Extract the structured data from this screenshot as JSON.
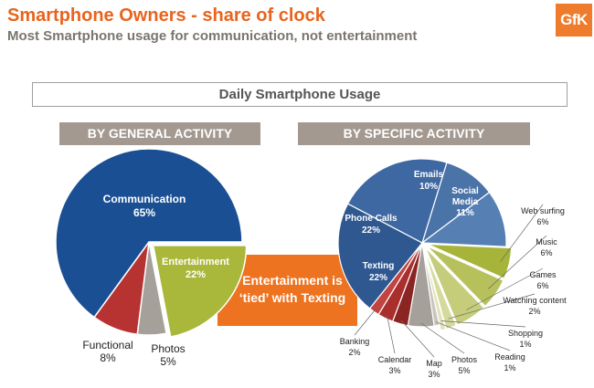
{
  "title": "Smartphone Owners - share of clock",
  "subtitle": "Most Smartphone usage for communication, not entertainment",
  "logo_text": "GfK",
  "usage_box_label": "Daily Smartphone Usage",
  "section_general": "BY GENERAL ACTIVITY",
  "section_specific": "BY SPECIFIC ACTIVITY",
  "callout_text": "Entertainment is ‘tied’ with Texting",
  "colors": {
    "brand_orange": "#e8641e",
    "communication": "#1a4f93",
    "entertainment": "#a9b73a",
    "functional": "#b73332",
    "photos": "#a5a09a"
  },
  "chart_data": [
    {
      "type": "pie",
      "title": "BY GENERAL ACTIVITY",
      "slices": [
        {
          "label": "Communication",
          "value": 65,
          "value_label": "65%",
          "color": "#1a4f93"
        },
        {
          "label": "Entertainment",
          "value": 22,
          "value_label": "22%",
          "color": "#a9b73a"
        },
        {
          "label": "Photos",
          "value": 5,
          "value_label": "5%",
          "color": "#a5a09a"
        },
        {
          "label": "Functional",
          "value": 8,
          "value_label": "8%",
          "color": "#b73332"
        }
      ]
    },
    {
      "type": "pie",
      "title": "BY SPECIFIC ACTIVITY",
      "slices": [
        {
          "label": "Emails",
          "value": 10,
          "value_label": "10%",
          "color": "#4a73a8"
        },
        {
          "label": "Social Media",
          "value": 11,
          "value_label": "11%",
          "color": "#5680b4"
        },
        {
          "label": "Web surfing",
          "value": 6,
          "value_label": "6%",
          "color": "#a6b53a"
        },
        {
          "label": "Music",
          "value": 6,
          "value_label": "6%",
          "color": "#b7c15c"
        },
        {
          "label": "Games",
          "value": 6,
          "value_label": "6%",
          "color": "#c5cd7b"
        },
        {
          "label": "Watching content",
          "value": 2,
          "value_label": "2%",
          "color": "#d5da9c"
        },
        {
          "label": "Shopping",
          "value": 1,
          "value_label": "1%",
          "color": "#e1e4b8"
        },
        {
          "label": "Reading",
          "value": 1,
          "value_label": "1%",
          "color": "#c9c4bd"
        },
        {
          "label": "Photos",
          "value": 5,
          "value_label": "5%",
          "color": "#a5a09a"
        },
        {
          "label": "Map",
          "value": 3,
          "value_label": "3%",
          "color": "#8b2523"
        },
        {
          "label": "Calendar",
          "value": 3,
          "value_label": "3%",
          "color": "#a92f2d"
        },
        {
          "label": "Banking",
          "value": 2,
          "value_label": "2%",
          "color": "#c24442"
        },
        {
          "label": "Texting",
          "value": 22,
          "value_label": "22%",
          "color": "#2f5891"
        },
        {
          "label": "Phone Calls",
          "value": 22,
          "value_label": "22%",
          "color": "#3e68a2"
        }
      ]
    }
  ]
}
